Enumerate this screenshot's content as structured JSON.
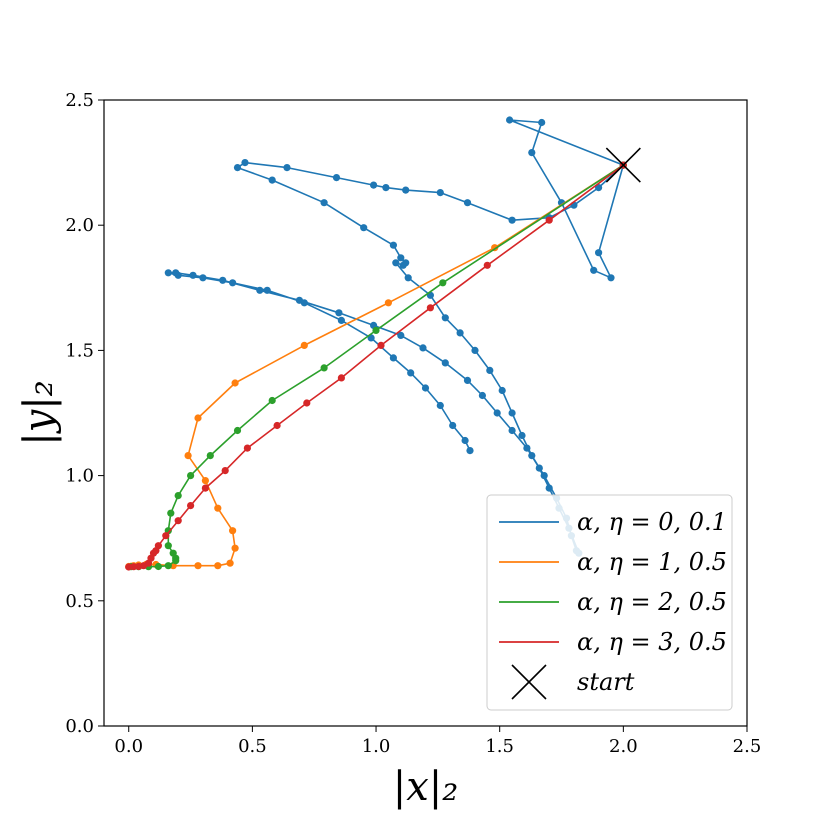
{
  "chart_data": {
    "type": "line",
    "xlabel": "|x|₂",
    "ylabel": "|y|₂",
    "xlim": [
      -0.1,
      2.5
    ],
    "ylim": [
      0.0,
      2.5
    ],
    "x_ticks": [
      "0.0",
      "0.5",
      "1.0",
      "1.5",
      "2.0",
      "2.5"
    ],
    "y_ticks": [
      "0.0",
      "0.5",
      "1.0",
      "1.5",
      "2.0",
      "2.5"
    ],
    "grid": false,
    "legend_position": "lower-right",
    "series": [
      {
        "name": "α, η = 0, 0.1",
        "color": "#1f77b4",
        "points": [
          [
            2.0,
            2.24
          ],
          [
            1.9,
            1.89
          ],
          [
            1.95,
            1.79
          ],
          [
            1.88,
            1.82
          ],
          [
            1.75,
            2.09
          ],
          [
            1.63,
            2.29
          ],
          [
            1.67,
            2.41
          ],
          [
            1.54,
            2.42
          ],
          [
            2.0,
            2.24
          ],
          [
            1.9,
            2.15
          ],
          [
            1.8,
            2.08
          ],
          [
            1.7,
            2.03
          ],
          [
            1.55,
            2.02
          ],
          [
            1.37,
            2.09
          ],
          [
            1.26,
            2.13
          ],
          [
            1.12,
            2.14
          ],
          [
            1.04,
            2.15
          ],
          [
            0.99,
            2.16
          ],
          [
            0.84,
            2.19
          ],
          [
            0.64,
            2.23
          ],
          [
            0.47,
            2.25
          ],
          [
            0.44,
            2.23
          ],
          [
            0.58,
            2.18
          ],
          [
            0.79,
            2.09
          ],
          [
            0.95,
            1.99
          ],
          [
            1.07,
            1.92
          ],
          [
            1.1,
            1.87
          ],
          [
            1.12,
            1.85
          ],
          [
            1.11,
            1.84
          ],
          [
            1.08,
            1.85
          ],
          [
            1.13,
            1.79
          ],
          [
            1.22,
            1.72
          ],
          [
            1.28,
            1.63
          ],
          [
            1.34,
            1.57
          ],
          [
            1.4,
            1.5
          ],
          [
            1.46,
            1.42
          ],
          [
            1.51,
            1.34
          ],
          [
            1.55,
            1.25
          ],
          [
            1.59,
            1.16
          ],
          [
            1.63,
            1.08
          ],
          [
            1.68,
            1.0
          ],
          [
            1.73,
            0.91
          ],
          [
            1.77,
            0.83
          ],
          [
            1.79,
            0.76
          ],
          [
            1.81,
            0.7
          ],
          [
            1.82,
            0.69
          ],
          [
            1.78,
            0.79
          ],
          [
            1.74,
            0.87
          ],
          [
            1.7,
            0.95
          ],
          [
            1.66,
            1.03
          ],
          [
            1.61,
            1.11
          ],
          [
            1.55,
            1.18
          ],
          [
            1.49,
            1.25
          ],
          [
            1.43,
            1.32
          ],
          [
            1.37,
            1.38
          ],
          [
            1.28,
            1.45
          ],
          [
            1.19,
            1.51
          ],
          [
            1.1,
            1.56
          ],
          [
            0.99,
            1.6
          ],
          [
            0.85,
            1.65
          ],
          [
            0.69,
            1.7
          ],
          [
            0.53,
            1.74
          ],
          [
            0.38,
            1.78
          ],
          [
            0.26,
            1.8
          ],
          [
            0.19,
            1.81
          ],
          [
            0.16,
            1.81
          ],
          [
            0.2,
            1.8
          ],
          [
            0.3,
            1.79
          ],
          [
            0.42,
            1.77
          ],
          [
            0.56,
            1.74
          ],
          [
            0.71,
            1.69
          ],
          [
            0.86,
            1.62
          ],
          [
            0.98,
            1.55
          ],
          [
            1.07,
            1.47
          ],
          [
            1.14,
            1.41
          ],
          [
            1.2,
            1.35
          ],
          [
            1.26,
            1.28
          ],
          [
            1.31,
            1.2
          ],
          [
            1.36,
            1.14
          ],
          [
            1.38,
            1.1
          ]
        ]
      },
      {
        "name": "α, η = 1, 0.5",
        "color": "#ff7f0e",
        "points": [
          [
            2.0,
            2.24
          ],
          [
            1.48,
            1.91
          ],
          [
            1.05,
            1.69
          ],
          [
            0.71,
            1.52
          ],
          [
            0.43,
            1.37
          ],
          [
            0.28,
            1.23
          ],
          [
            0.24,
            1.08
          ],
          [
            0.31,
            0.98
          ],
          [
            0.36,
            0.87
          ],
          [
            0.42,
            0.78
          ],
          [
            0.43,
            0.71
          ],
          [
            0.41,
            0.65
          ],
          [
            0.36,
            0.64
          ],
          [
            0.28,
            0.64
          ],
          [
            0.18,
            0.64
          ],
          [
            0.11,
            0.645
          ],
          [
            0.07,
            0.645
          ],
          [
            0.04,
            0.643
          ],
          [
            0.02,
            0.64
          ],
          [
            0.01,
            0.638
          ],
          [
            0.0,
            0.637
          ]
        ]
      },
      {
        "name": "α, η = 2, 0.5",
        "color": "#2ca02c",
        "points": [
          [
            2.0,
            2.24
          ],
          [
            1.27,
            1.77
          ],
          [
            1.0,
            1.58
          ],
          [
            0.79,
            1.43
          ],
          [
            0.58,
            1.3
          ],
          [
            0.44,
            1.18
          ],
          [
            0.33,
            1.08
          ],
          [
            0.25,
            1.0
          ],
          [
            0.2,
            0.92
          ],
          [
            0.17,
            0.85
          ],
          [
            0.16,
            0.78
          ],
          [
            0.16,
            0.72
          ],
          [
            0.18,
            0.69
          ],
          [
            0.19,
            0.67
          ],
          [
            0.19,
            0.66
          ],
          [
            0.16,
            0.64
          ],
          [
            0.12,
            0.637
          ],
          [
            0.08,
            0.636
          ],
          [
            0.04,
            0.636
          ],
          [
            0.01,
            0.636
          ]
        ]
      },
      {
        "name": "α, η = 3, 0.5",
        "color": "#d62728",
        "points": [
          [
            2.0,
            2.24
          ],
          [
            1.7,
            2.02
          ],
          [
            1.45,
            1.84
          ],
          [
            1.22,
            1.67
          ],
          [
            1.02,
            1.52
          ],
          [
            0.86,
            1.39
          ],
          [
            0.72,
            1.29
          ],
          [
            0.6,
            1.2
          ],
          [
            0.48,
            1.11
          ],
          [
            0.39,
            1.02
          ],
          [
            0.31,
            0.95
          ],
          [
            0.25,
            0.88
          ],
          [
            0.2,
            0.82
          ],
          [
            0.15,
            0.76
          ],
          [
            0.12,
            0.72
          ],
          [
            0.11,
            0.7
          ],
          [
            0.1,
            0.69
          ],
          [
            0.09,
            0.67
          ],
          [
            0.08,
            0.65
          ],
          [
            0.06,
            0.64
          ],
          [
            0.04,
            0.637
          ],
          [
            0.02,
            0.636
          ],
          [
            0.0,
            0.635
          ]
        ]
      }
    ],
    "start_marker": {
      "label": "start",
      "point": [
        2.0,
        2.24
      ]
    }
  }
}
